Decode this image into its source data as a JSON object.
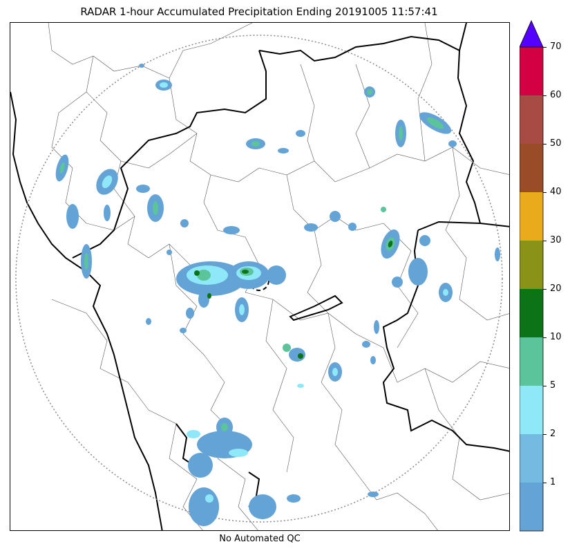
{
  "title": "RADAR 1-hour Accumulated Precipitation Ending 20191005 11:57:41",
  "caption": "No Automated QC",
  "colorbar": {
    "levels": [
      {
        "label": "",
        "color": "#64a3d6"
      },
      {
        "label": "1",
        "color": "#74bae1"
      },
      {
        "label": "2",
        "color": "#8fe8f8"
      },
      {
        "label": "5",
        "color": "#5cc49a"
      },
      {
        "label": "10",
        "color": "#0d7317"
      },
      {
        "label": "20",
        "color": "#8a9317"
      },
      {
        "label": "30",
        "color": "#e9aa1b"
      },
      {
        "label": "40",
        "color": "#9a4b27"
      },
      {
        "label": "50",
        "color": "#a84b45"
      },
      {
        "label": "60",
        "color": "#d40044"
      }
    ],
    "top_label": "70",
    "extend_color": "#5400ff"
  },
  "colors": {
    "precip_light": "#64a3d6",
    "precip_mid": "#8fe8f8",
    "precip_heavy": "#5cc49a",
    "precip_intense": "#0d7317",
    "boundary": "#000000",
    "range_ring": "#888888"
  }
}
